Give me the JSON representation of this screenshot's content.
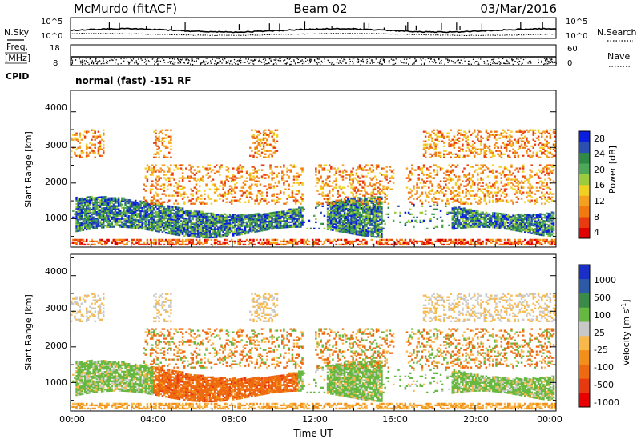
{
  "header": {
    "title": "McMurdo (fitACF)",
    "beam": "Beam 02",
    "date": "03/Mar/2016"
  },
  "left_labels": {
    "nsky": "N.Sky",
    "freq": "Freq.",
    "freq_unit": "[MHz]",
    "cpid": "CPID"
  },
  "right_labels": {
    "nsearch": "N.Search",
    "nave": "Nave"
  },
  "cpid_text": "normal (fast) -151 RF",
  "colors": {
    "power": [
      "#0a1ee0",
      "#2a4fb0",
      "#2e8a46",
      "#4ea85a",
      "#9ccc3c",
      "#f0d020",
      "#f6a020",
      "#f07a10",
      "#e83c10",
      "#e00000"
    ],
    "velocity": [
      "#1a2ec8",
      "#2c5aa6",
      "#3a8a4a",
      "#66b840",
      "#c8c8c8",
      "#f8b84a",
      "#f2901a",
      "#ee6a10",
      "#e83a10",
      "#e80000"
    ]
  },
  "chart_data": [
    {
      "type": "line",
      "name": "noise",
      "left_axis": {
        "ticks": [
          "10^5",
          "10^0"
        ]
      },
      "right_axis": {
        "ticks": [
          "10^5",
          "10^0"
        ]
      },
      "series": [
        {
          "name": "N.Sky",
          "style": "solid"
        },
        {
          "name": "N.Search",
          "style": "dotted"
        }
      ]
    },
    {
      "type": "line",
      "name": "frequency",
      "left_axis": {
        "ticks": [
          "18",
          "8"
        ]
      },
      "right_axis": {
        "ticks": [
          "60",
          "0"
        ]
      },
      "series": [
        {
          "name": "Freq.",
          "style": "solid"
        },
        {
          "name": "Nave",
          "style": "dotted"
        }
      ]
    },
    {
      "type": "heatmap",
      "name": "power",
      "ylabel": "Slant Range [km]",
      "yticks": [
        "4000",
        "3000",
        "2000",
        "1000"
      ],
      "ylim": [
        200,
        4600
      ],
      "colorbar": {
        "label": "Power [dB]",
        "ticks": [
          "28",
          "24",
          "20",
          "16",
          "12",
          "8",
          "4"
        ]
      }
    },
    {
      "type": "heatmap",
      "name": "velocity",
      "ylabel": "Slant Range [km]",
      "yticks": [
        "4000",
        "3000",
        "2000",
        "1000"
      ],
      "ylim": [
        200,
        4600
      ],
      "xlabel": "Time UT",
      "xticks": [
        "00:00",
        "04:00",
        "08:00",
        "12:00",
        "16:00",
        "20:00",
        "00:00"
      ],
      "colorbar": {
        "label": "Velocity [m s",
        "label_sup": "-1",
        "label_end": "]",
        "ticks": [
          "1000",
          "500",
          "100",
          "25",
          "-25",
          "-100",
          "-500",
          "-1000"
        ]
      }
    }
  ]
}
